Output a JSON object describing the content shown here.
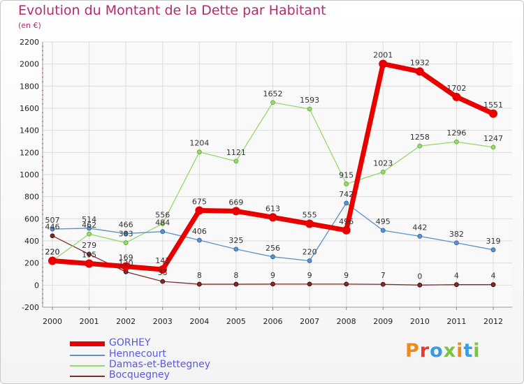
{
  "title": "Evolution du Montant de la Dette par Habitant",
  "subtitle": "(en €)",
  "logo": {
    "text": "Proxiti",
    "colors": [
      "#f08a1c",
      "#e83a2d",
      "#3a9be0",
      "#7bc142",
      "#f08a1c",
      "#3a9be0",
      "#7bc142"
    ]
  },
  "chart_data": {
    "type": "line",
    "categories": [
      "2000",
      "2001",
      "2002",
      "2003",
      "2004",
      "2005",
      "2006",
      "2007",
      "2008",
      "2009",
      "2010",
      "2011",
      "2012"
    ],
    "yticks": [
      "-200",
      "0",
      "200",
      "400",
      "600",
      "800",
      "1000",
      "1200",
      "1400",
      "1600",
      "1800",
      "2000",
      "2200"
    ],
    "ylim": [
      -200,
      2200
    ],
    "grid": true,
    "legend_position": "bottom-left",
    "series": [
      {
        "name": "GORHEY",
        "color": "#e80000",
        "width": 7,
        "marker": 6,
        "values": [
          220,
          195,
          169,
          141,
          675,
          669,
          613,
          555,
          496,
          2001,
          1932,
          1702,
          1551
        ],
        "labels": [
          "220",
          "195",
          "169",
          "141",
          "675",
          "669",
          "613",
          "555",
          "496",
          "2001",
          "1932",
          "1702",
          "1551"
        ]
      },
      {
        "name": "Hennecourt",
        "color": "#5b93c8",
        "width": 1.3,
        "marker": 3,
        "values": [
          507,
          514,
          466,
          484,
          406,
          325,
          256,
          220,
          742,
          495,
          442,
          382,
          319
        ],
        "labels": [
          "507",
          "514",
          "466",
          "484",
          "406",
          "325",
          "256",
          "220",
          "742",
          "495",
          "442",
          "382",
          "319"
        ]
      },
      {
        "name": "Damas-et-Bettegney",
        "color": "#96d86a",
        "width": 1.3,
        "marker": 3,
        "values": [
          220,
          462,
          383,
          556,
          1204,
          1121,
          1652,
          1593,
          915,
          1023,
          1258,
          1296,
          1247
        ],
        "labels": [
          "220",
          "462",
          "383",
          "556",
          "1204",
          "1121",
          "1652",
          "1593",
          "915",
          "1023",
          "1258",
          "1296",
          "1247"
        ]
      },
      {
        "name": "Bocquegney",
        "color": "#7a2e2e",
        "width": 1.3,
        "marker": 3,
        "values": [
          446,
          279,
          120,
          33,
          8,
          8,
          9,
          9,
          9,
          7,
          0,
          4,
          4
        ],
        "labels": [
          "446",
          "279",
          "120",
          "33",
          "8",
          "8",
          "9",
          "9",
          "9",
          "7",
          "0",
          "4",
          "4"
        ]
      }
    ]
  }
}
